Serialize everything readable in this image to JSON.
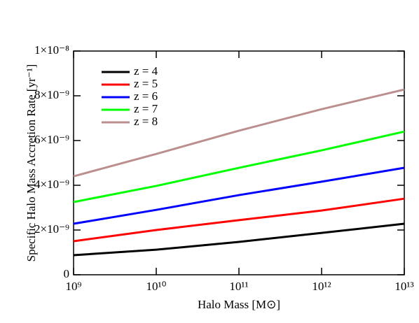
{
  "chart_data": {
    "type": "line",
    "x_label": "Halo Mass [M⊙]",
    "y_label": "Specific Halo Mass Accretion Rate [yr⁻¹]",
    "xscale": "log",
    "xlim": [
      1000000000.0,
      10000000000000.0
    ],
    "xticks": [
      {
        "value": 1000000000.0,
        "label": "10⁹"
      },
      {
        "value": 10000000000.0,
        "label": "10¹⁰"
      },
      {
        "value": 100000000000.0,
        "label": "10¹¹"
      },
      {
        "value": 1000000000000.0,
        "label": "10¹²"
      },
      {
        "value": 10000000000000.0,
        "label": "10¹³"
      }
    ],
    "ylim": [
      0,
      1e-08
    ],
    "yticks": [
      0,
      {
        "value": 2e-09,
        "label": "2×10⁻⁹"
      },
      {
        "value": 4e-09,
        "label": "4×10⁻⁹"
      },
      {
        "value": 6e-09,
        "label": "6×10⁻⁹"
      },
      {
        "value": 8e-09,
        "label": "8×10⁻⁹"
      },
      {
        "value": 1e-08,
        "label": "1×10⁻⁸"
      }
    ],
    "legend": "upper left",
    "x": [
      1000000000.0,
      10000000000.0,
      100000000000.0,
      1000000000000.0,
      10000000000000.0
    ],
    "series": [
      {
        "name": "z = 4",
        "color": "#000000",
        "values": [
          8.75e-10,
          1.12e-09,
          1.47e-09,
          1.87e-09,
          2.28e-09
        ]
      },
      {
        "name": "z = 5",
        "color": "#ff0000",
        "values": [
          1.5e-09,
          2e-09,
          2.44e-09,
          2.87e-09,
          3.4e-09
        ]
      },
      {
        "name": "z = 6",
        "color": "#0000ff",
        "values": [
          2.28e-09,
          2.9e-09,
          3.56e-09,
          4.16e-09,
          4.78e-09
        ]
      },
      {
        "name": "z = 7",
        "color": "#00ff00",
        "values": [
          3.25e-09,
          3.97e-09,
          4.78e-09,
          5.56e-09,
          6.4e-09
        ]
      },
      {
        "name": "z = 8",
        "color": "#bc8f8f",
        "values": [
          4.4e-09,
          5.4e-09,
          6.44e-09,
          7.4e-09,
          8.28e-09
        ]
      }
    ]
  }
}
